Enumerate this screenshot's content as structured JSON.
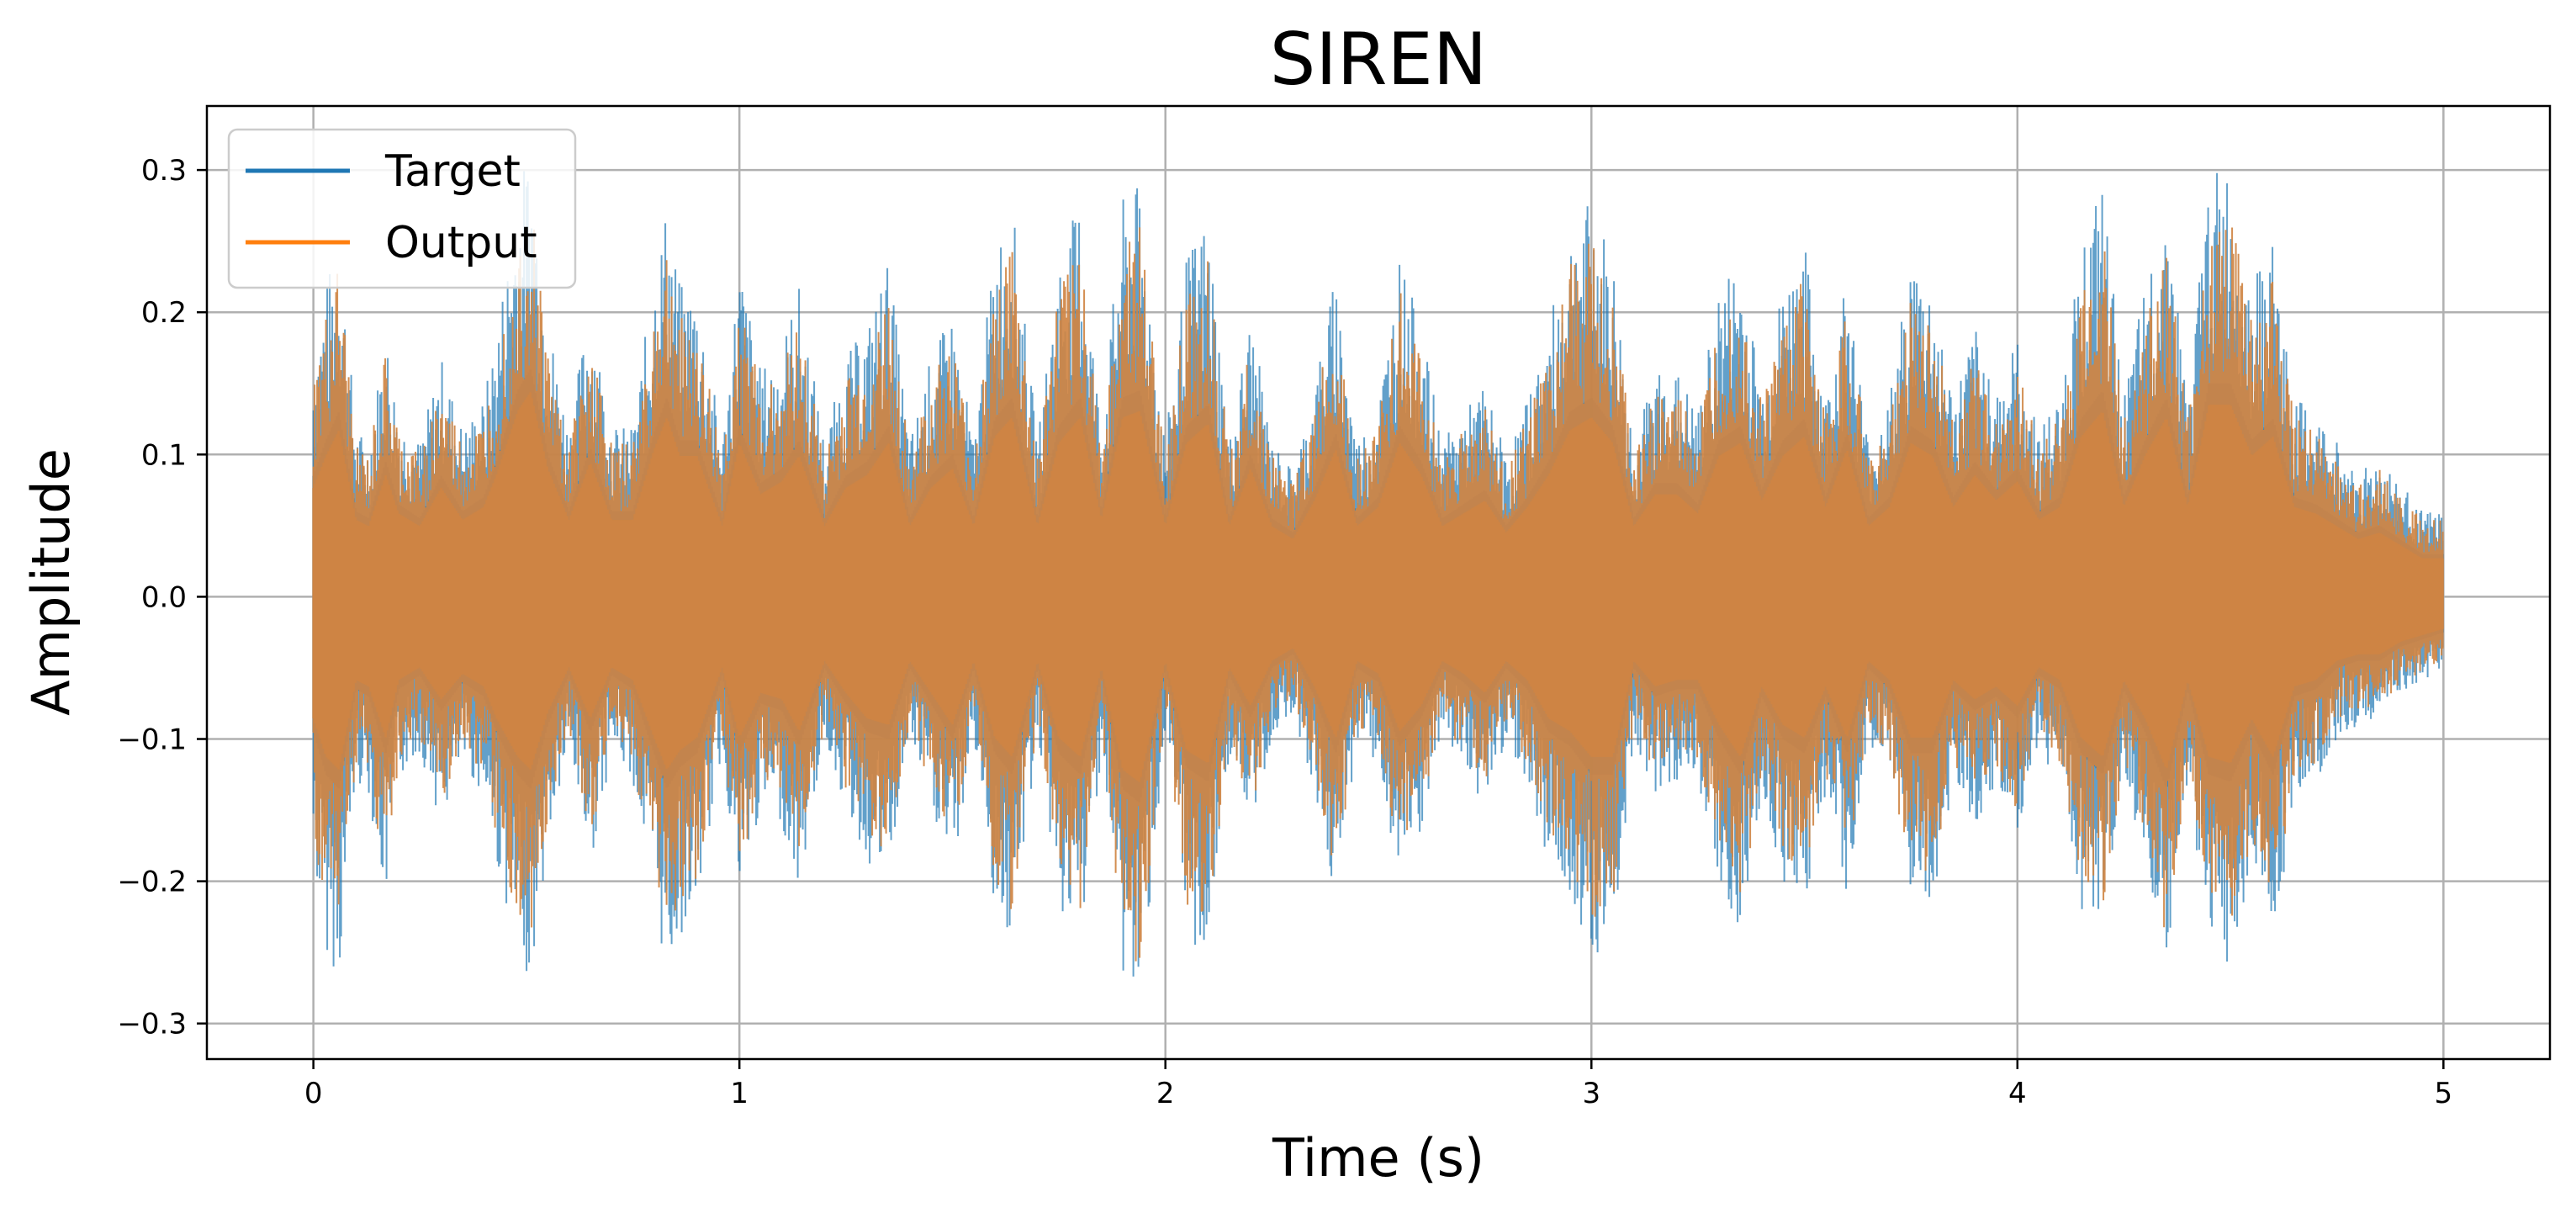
{
  "chart_data": {
    "type": "line",
    "title": "SIREN",
    "xlabel": "Time (s)",
    "ylabel": "Amplitude",
    "xlim": [
      -0.25,
      5.25
    ],
    "ylim": [
      -0.325,
      0.345
    ],
    "xticks": [
      0,
      1,
      2,
      3,
      4,
      5
    ],
    "xtick_labels": [
      "0",
      "1",
      "2",
      "3",
      "4",
      "5"
    ],
    "yticks": [
      -0.3,
      -0.2,
      -0.1,
      0.0,
      0.1,
      0.2,
      0.3
    ],
    "ytick_labels": [
      "−0.3",
      "−0.2",
      "−0.1",
      "0.0",
      "0.1",
      "0.2",
      "0.3"
    ],
    "grid": true,
    "legend": {
      "position": "top-left",
      "entries": [
        "Target",
        "Output"
      ]
    },
    "colors": {
      "Target": "#1f77b4",
      "Output": "#ff7f0e",
      "overlap": "#cf8443"
    },
    "series": [
      {
        "name": "Target",
        "envelope_note": "audio waveform peaks per segment",
        "x": [
          0.0,
          0.03,
          0.06,
          0.1,
          0.13,
          0.17,
          0.2,
          0.25,
          0.3,
          0.35,
          0.4,
          0.43,
          0.48,
          0.51,
          0.55,
          0.6,
          0.65,
          0.7,
          0.75,
          0.8,
          0.83,
          0.86,
          0.9,
          0.96,
          1.0,
          1.05,
          1.1,
          1.14,
          1.2,
          1.25,
          1.3,
          1.35,
          1.4,
          1.45,
          1.5,
          1.55,
          1.6,
          1.64,
          1.7,
          1.75,
          1.8,
          1.85,
          1.9,
          1.94,
          2.0,
          2.05,
          2.1,
          2.15,
          2.2,
          2.25,
          2.3,
          2.35,
          2.4,
          2.45,
          2.5,
          2.55,
          2.6,
          2.65,
          2.7,
          2.75,
          2.8,
          2.85,
          2.9,
          2.95,
          3.0,
          3.05,
          3.1,
          3.15,
          3.2,
          3.25,
          3.3,
          3.35,
          3.4,
          3.45,
          3.5,
          3.55,
          3.6,
          3.65,
          3.7,
          3.75,
          3.8,
          3.85,
          3.9,
          3.95,
          4.0,
          4.05,
          4.1,
          4.15,
          4.2,
          4.25,
          4.3,
          4.35,
          4.4,
          4.45,
          4.5,
          4.55,
          4.6,
          4.65,
          4.7,
          4.75,
          4.8,
          4.85,
          4.9,
          4.95,
          5.0
        ],
        "max": [
          0.17,
          0.22,
          0.26,
          0.12,
          0.11,
          0.19,
          0.13,
          0.11,
          0.17,
          0.12,
          0.14,
          0.19,
          0.29,
          0.32,
          0.2,
          0.12,
          0.21,
          0.12,
          0.12,
          0.23,
          0.28,
          0.22,
          0.22,
          0.11,
          0.24,
          0.16,
          0.18,
          0.22,
          0.11,
          0.17,
          0.19,
          0.24,
          0.11,
          0.17,
          0.2,
          0.11,
          0.25,
          0.28,
          0.11,
          0.24,
          0.28,
          0.12,
          0.28,
          0.29,
          0.11,
          0.24,
          0.27,
          0.11,
          0.2,
          0.11,
          0.09,
          0.15,
          0.23,
          0.11,
          0.14,
          0.24,
          0.19,
          0.11,
          0.13,
          0.15,
          0.1,
          0.14,
          0.19,
          0.26,
          0.28,
          0.24,
          0.11,
          0.16,
          0.16,
          0.13,
          0.22,
          0.24,
          0.15,
          0.22,
          0.25,
          0.14,
          0.23,
          0.11,
          0.14,
          0.24,
          0.22,
          0.14,
          0.19,
          0.15,
          0.18,
          0.12,
          0.14,
          0.25,
          0.29,
          0.14,
          0.22,
          0.28,
          0.14,
          0.3,
          0.3,
          0.22,
          0.25,
          0.14,
          0.13,
          0.11,
          0.09,
          0.1,
          0.08,
          0.06,
          0.06
        ],
        "min": [
          -0.19,
          -0.25,
          -0.27,
          -0.13,
          -0.14,
          -0.22,
          -0.13,
          -0.11,
          -0.16,
          -0.12,
          -0.14,
          -0.19,
          -0.25,
          -0.27,
          -0.18,
          -0.11,
          -0.19,
          -0.11,
          -0.13,
          -0.22,
          -0.27,
          -0.24,
          -0.22,
          -0.11,
          -0.22,
          -0.15,
          -0.16,
          -0.21,
          -0.1,
          -0.15,
          -0.19,
          -0.2,
          -0.1,
          -0.15,
          -0.2,
          -0.1,
          -0.22,
          -0.25,
          -0.1,
          -0.22,
          -0.25,
          -0.11,
          -0.27,
          -0.29,
          -0.1,
          -0.24,
          -0.26,
          -0.11,
          -0.17,
          -0.1,
          -0.08,
          -0.14,
          -0.22,
          -0.1,
          -0.12,
          -0.21,
          -0.17,
          -0.1,
          -0.12,
          -0.15,
          -0.1,
          -0.13,
          -0.19,
          -0.21,
          -0.25,
          -0.25,
          -0.1,
          -0.14,
          -0.13,
          -0.13,
          -0.2,
          -0.25,
          -0.14,
          -0.2,
          -0.22,
          -0.14,
          -0.22,
          -0.1,
          -0.13,
          -0.22,
          -0.22,
          -0.13,
          -0.16,
          -0.14,
          -0.17,
          -0.11,
          -0.13,
          -0.22,
          -0.25,
          -0.13,
          -0.19,
          -0.27,
          -0.13,
          -0.25,
          -0.26,
          -0.19,
          -0.25,
          -0.14,
          -0.13,
          -0.1,
          -0.09,
          -0.09,
          -0.07,
          -0.06,
          -0.05
        ]
      },
      {
        "name": "Output",
        "scale_of_target": 0.9
      }
    ]
  }
}
